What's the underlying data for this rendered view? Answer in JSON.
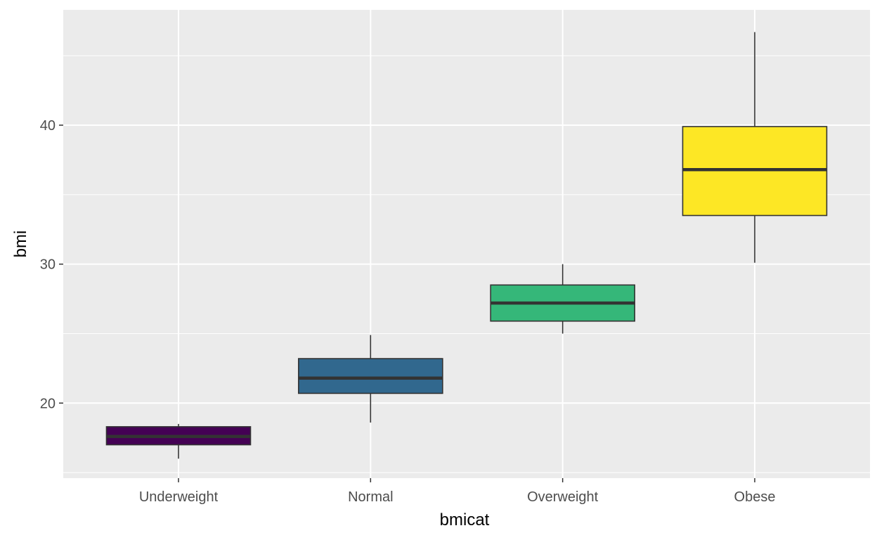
{
  "chart_data": {
    "type": "boxplot",
    "title": "",
    "xlabel": "bmicat",
    "ylabel": "bmi",
    "categories": [
      "Underweight",
      "Normal",
      "Overweight",
      "Obese"
    ],
    "boxes": [
      {
        "category": "Underweight",
        "min": 16.0,
        "q1": 17.0,
        "median": 17.6,
        "q3": 18.3,
        "max": 18.5,
        "fill": "#440154"
      },
      {
        "category": "Normal",
        "min": 18.6,
        "q1": 20.7,
        "median": 21.8,
        "q3": 23.2,
        "max": 24.9,
        "fill": "#31688E"
      },
      {
        "category": "Overweight",
        "min": 25.0,
        "q1": 25.9,
        "median": 27.2,
        "q3": 28.5,
        "max": 30.0,
        "fill": "#35B779"
      },
      {
        "category": "Obese",
        "min": 30.1,
        "q1": 33.5,
        "median": 36.8,
        "q3": 39.9,
        "max": 46.7,
        "fill": "#FDE725"
      }
    ],
    "ylim": [
      14.6,
      48.3
    ],
    "y_ticks": [
      20,
      30,
      40
    ],
    "y_ticks_minor": [
      15,
      25,
      35,
      45
    ],
    "grid": true,
    "panel_background": "#EBEBEB",
    "grid_color": "#FFFFFF",
    "box_outline": "#333333",
    "legend": "none"
  }
}
